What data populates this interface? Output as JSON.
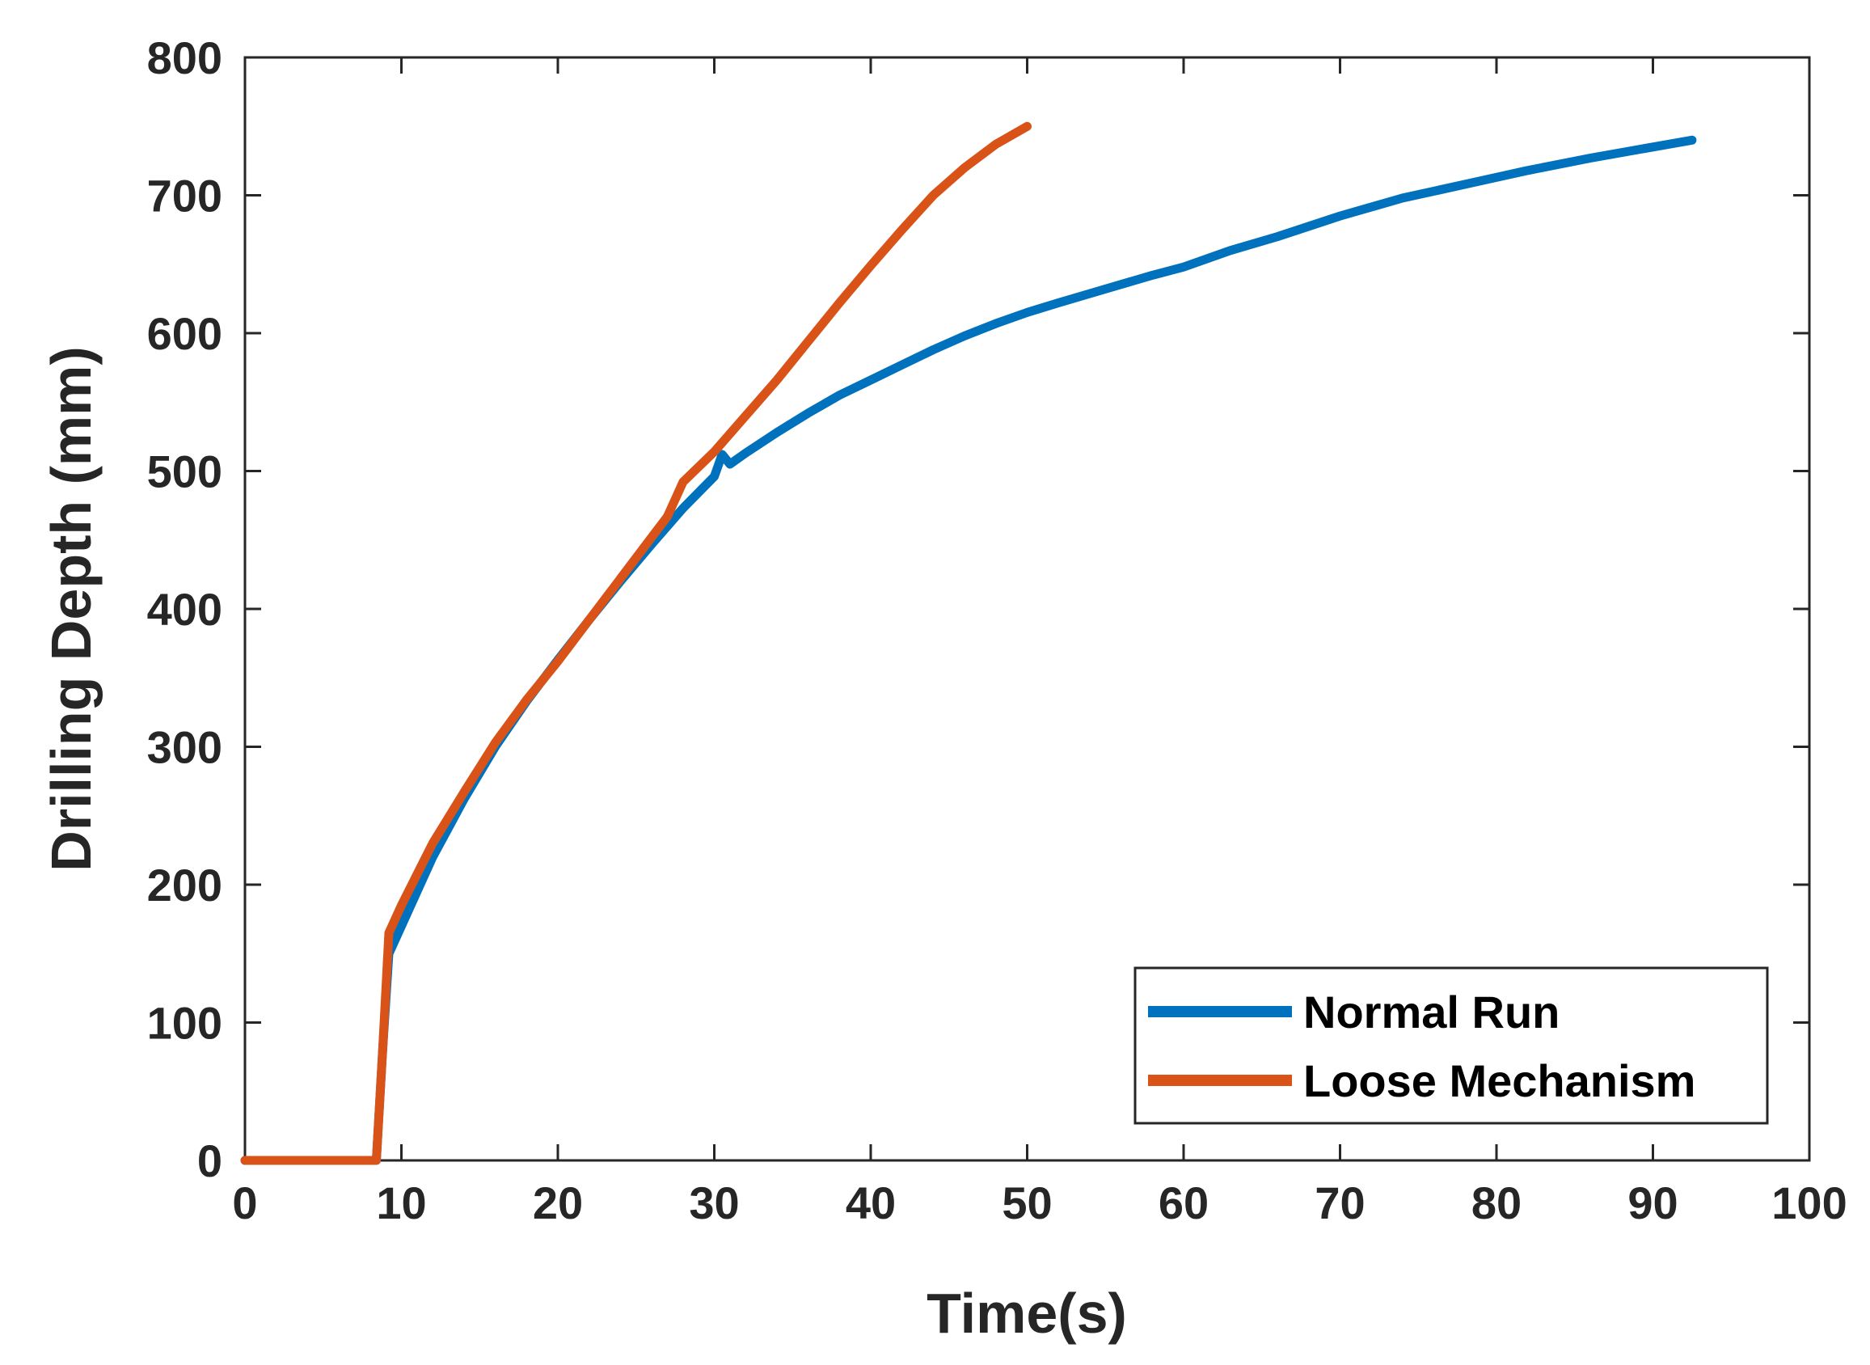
{
  "chart_data": {
    "type": "line",
    "title": "",
    "xlabel": "Time(s)",
    "ylabel": "Drilling Depth (mm)",
    "xlim": [
      0,
      100
    ],
    "ylim": [
      0,
      800
    ],
    "xticks": [
      0,
      10,
      20,
      30,
      40,
      50,
      60,
      70,
      80,
      90,
      100
    ],
    "yticks": [
      0,
      100,
      200,
      300,
      400,
      500,
      600,
      700,
      800
    ],
    "xtick_labels": [
      "0",
      "10",
      "20",
      "30",
      "40",
      "50",
      "60",
      "70",
      "80",
      "90",
      "100"
    ],
    "ytick_labels": [
      "0",
      "100",
      "200",
      "300",
      "400",
      "500",
      "600",
      "700",
      "800"
    ],
    "grid": false,
    "legend_position": "bottom-right",
    "series": [
      {
        "name": "Normal Run",
        "color": "#0072BD",
        "x": [
          0,
          8,
          8.4,
          8.8,
          9.2,
          10,
          12,
          14,
          16,
          18,
          20,
          22,
          24,
          26,
          28,
          30,
          30.5,
          31,
          32,
          34,
          36,
          38,
          40,
          42,
          44,
          46,
          48,
          50,
          52,
          55,
          58,
          60,
          63,
          66,
          70,
          74,
          78,
          82,
          86,
          90,
          92.5
        ],
        "values": [
          0,
          0,
          0,
          80,
          150,
          170,
          220,
          262,
          300,
          333,
          363,
          392,
          420,
          447,
          473,
          496,
          512,
          505,
          513,
          528,
          542,
          555,
          566,
          577,
          588,
          598,
          607,
          615,
          622,
          632,
          642,
          648,
          660,
          670,
          685,
          698,
          708,
          718,
          727,
          735,
          740
        ]
      },
      {
        "name": "Loose Mechanism",
        "color": "#D95319",
        "x": [
          0,
          8,
          8.4,
          8.8,
          9.2,
          10,
          12,
          14,
          16,
          18,
          20,
          22,
          24,
          26,
          27,
          28,
          30,
          32,
          34,
          36,
          38,
          40,
          42,
          44,
          46,
          48,
          50
        ],
        "values": [
          0,
          0,
          0,
          80,
          165,
          185,
          230,
          267,
          303,
          334,
          362,
          392,
          422,
          452,
          467,
          492,
          514,
          540,
          566,
          594,
          622,
          649,
          675,
          700,
          720,
          737,
          750
        ]
      }
    ]
  }
}
